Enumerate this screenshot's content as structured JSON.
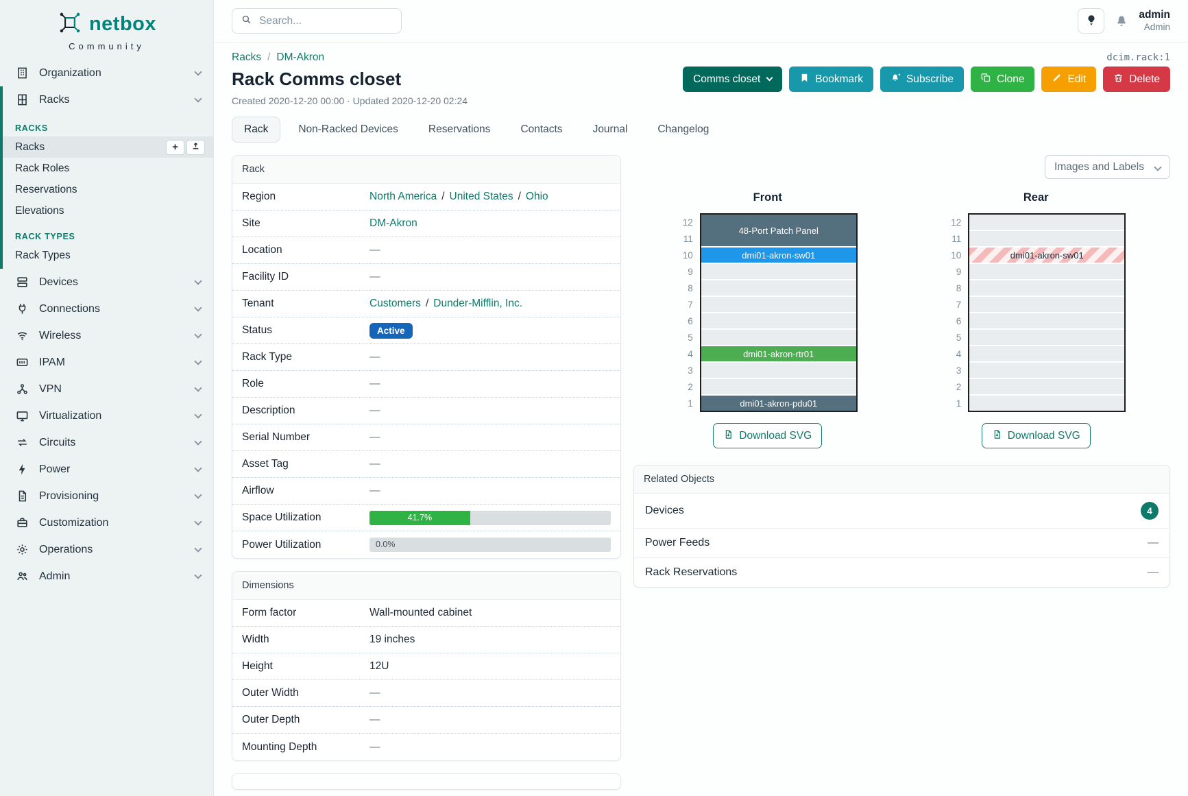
{
  "brand": {
    "name": "netbox",
    "edition": "Community"
  },
  "topbar": {
    "search_placeholder": "Search..."
  },
  "user": {
    "name": "admin",
    "role": "Admin"
  },
  "sidebar": {
    "organization": "Organization",
    "racks": "Racks",
    "racks_group": {
      "section_racks": "RACKS",
      "racks_link": "Racks",
      "add_button": "+",
      "rack_roles": "Rack Roles",
      "reservations": "Reservations",
      "elevations": "Elevations",
      "section_rack_types": "RACK TYPES",
      "rack_types": "Rack Types"
    },
    "items": [
      "Devices",
      "Connections",
      "Wireless",
      "IPAM",
      "VPN",
      "Virtualization",
      "Circuits",
      "Power",
      "Provisioning",
      "Customization",
      "Operations",
      "Admin"
    ]
  },
  "page": {
    "breadcrumb": [
      "Racks",
      "DM-Akron"
    ],
    "breadcrumb_separator": "/",
    "object_id": "dcim.rack:1",
    "title": "Rack Comms closet",
    "meta": "Created 2020-12-20 00:00 · Updated 2020-12-20 02:24"
  },
  "actions": {
    "name_button": "Comms closet",
    "bookmark": "Bookmark",
    "subscribe": "Subscribe",
    "clone": "Clone",
    "edit": "Edit",
    "delete": "Delete"
  },
  "tabs": [
    "Rack",
    "Non-Racked Devices",
    "Reservations",
    "Contacts",
    "Journal",
    "Changelog"
  ],
  "rack_panel": {
    "title": "Rack",
    "region_label": "Region",
    "region_links": [
      "North America",
      "United States",
      "Ohio"
    ],
    "site_label": "Site",
    "site_link": "DM-Akron",
    "location_label": "Location",
    "location_value": "—",
    "facility_label": "Facility ID",
    "facility_value": "—",
    "tenant_label": "Tenant",
    "tenant_links": [
      "Customers",
      "Dunder-Mifflin, Inc."
    ],
    "status_label": "Status",
    "status_badge": "Active",
    "rack_type_label": "Rack Type",
    "rack_type_value": "—",
    "role_label": "Role",
    "role_value": "—",
    "description_label": "Description",
    "description_value": "—",
    "serial_label": "Serial Number",
    "serial_value": "—",
    "asset_label": "Asset Tag",
    "asset_value": "—",
    "airflow_label": "Airflow",
    "airflow_value": "—",
    "space_label": "Space Utilization",
    "space_percent": "41.7%",
    "space_width": "41.7%",
    "power_label": "Power Utilization",
    "power_percent": "0.0%"
  },
  "dimensions_panel": {
    "title": "Dimensions",
    "rows": [
      {
        "label": "Form factor",
        "value": "Wall-mounted cabinet"
      },
      {
        "label": "Width",
        "value": "19 inches"
      },
      {
        "label": "Height",
        "value": "12U"
      },
      {
        "label": "Outer Width",
        "value": "—"
      },
      {
        "label": "Outer Depth",
        "value": "—"
      },
      {
        "label": "Mounting Depth",
        "value": "—"
      }
    ]
  },
  "elevations": {
    "view_select": "Images and Labels",
    "front_title": "Front",
    "rear_title": "Rear",
    "unit_numbers": [
      "12",
      "11",
      "10",
      "9",
      "8",
      "7",
      "6",
      "5",
      "4",
      "3",
      "2",
      "1"
    ],
    "front": {
      "patch_panel": "48-Port Patch Panel",
      "switch": "dmi01-akron-sw01",
      "router": "dmi01-akron-rtr01",
      "pdu": "dmi01-akron-pdu01"
    },
    "rear": {
      "switch": "dmi01-akron-sw01"
    },
    "download_svg": "Download SVG"
  },
  "related_objects": {
    "title": "Related Objects",
    "rows": [
      {
        "label": "Devices",
        "count": "4"
      },
      {
        "label": "Power Feeds",
        "value": "—"
      },
      {
        "label": "Rack Reservations",
        "value": "—"
      }
    ]
  },
  "colors": {
    "brand_teal": "#00857c",
    "link_teal": "#0e7a6a",
    "status_active_blue": "#1566b8",
    "utilization_green": "#2fb344",
    "device_slate": "#546f7d",
    "device_blue": "#1e96ea",
    "device_green": "#4cae50",
    "rear_stripe_red": "#f5b9b9",
    "button_rename": "#00695c",
    "button_info_cyan": "#1799ab",
    "button_clone_green": "#2fb344",
    "button_edit_orange": "#f59f00",
    "button_delete_red": "#d63946",
    "devices_count_badge": "#0e7a6a"
  }
}
